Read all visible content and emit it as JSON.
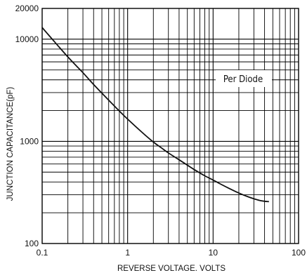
{
  "chart_data": {
    "type": "line",
    "title": "",
    "xlabel": "REVERSE VOLTAGE. VOLTS",
    "ylabel": "JUNCTION CAPACITANCE(pF)",
    "x_scale": "log",
    "y_scale": "log",
    "xlim": [
      0.1,
      100
    ],
    "ylim": [
      100,
      20000
    ],
    "grid": true,
    "x_ticks": [
      "0.1",
      "1",
      "10",
      "100"
    ],
    "y_ticks": [
      "100",
      "1000",
      "10000",
      "20000"
    ],
    "annotation": "Per Diode",
    "series": [
      {
        "x": [
          0.1,
          0.12,
          0.15,
          0.2,
          0.25,
          0.3,
          0.4,
          0.5,
          0.6,
          0.8,
          1,
          1.5,
          2,
          2.5,
          3,
          4,
          5,
          6,
          8,
          10,
          12,
          15,
          20,
          25,
          30,
          35,
          40,
          45
        ],
        "y": [
          13000,
          10900,
          8800,
          6700,
          5500,
          4700,
          3600,
          2960,
          2530,
          1980,
          1650,
          1210,
          985,
          860,
          770,
          660,
          585,
          530,
          460,
          418,
          385,
          350,
          312,
          289,
          274,
          264,
          259,
          257
        ]
      }
    ]
  }
}
